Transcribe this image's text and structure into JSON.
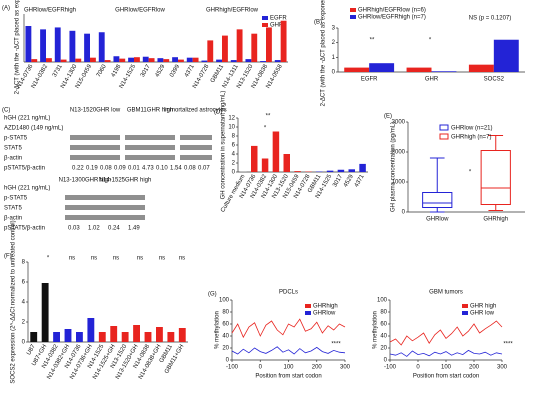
{
  "chart_data": [
    {
      "type": "bar",
      "panel": "(A)",
      "ylabel": "2-ΔCT (with the -ΔCT placed as exponent)",
      "annotations": [
        "GHRlow/EGFRhigh",
        "GHRlow/EGFRlow",
        "GHRhigh/EGFRlow"
      ],
      "categories": [
        "N14-0736",
        "N14-0382",
        "3731",
        "N14-1300",
        "N15-0459",
        "7060",
        "4198",
        "N14-1525",
        "3017",
        "4529",
        "0399",
        "4371",
        "N14-0728",
        "GBM11",
        "N14-1311",
        "N13-1520",
        "N14-0838",
        "N14-0558"
      ],
      "series": [
        {
          "name": "EGFR",
          "color": "#2323d6",
          "values": [
            7.5,
            6.8,
            7.2,
            6.5,
            5.9,
            6.2,
            1.2,
            0.9,
            1.1,
            0.8,
            1.0,
            0.9,
            0.3,
            0.5,
            0.4,
            0.6,
            0.2,
            0.4
          ]
        },
        {
          "name": "GHR",
          "color": "#e8241f",
          "values": [
            0.6,
            0.8,
            0.5,
            0.7,
            0.9,
            0.4,
            0.7,
            1.0,
            0.8,
            0.6,
            0.5,
            0.9,
            4.5,
            5.5,
            6.8,
            5.9,
            7.2,
            8.6
          ]
        }
      ],
      "ylim": [
        0,
        10
      ]
    },
    {
      "type": "bar",
      "panel": "(B)",
      "ylabel": "2-ΔCT (with the -ΔCT placed as exponent)",
      "annotations": [
        "**",
        "*",
        "NS (p = 0.1207)"
      ],
      "categories": [
        "EGFR",
        "GHR",
        "SOCS2"
      ],
      "series": [
        {
          "name": "GHRhigh/EGFRlow (n=6)",
          "color": "#e8241f",
          "values": [
            0.3,
            0.3,
            0.5
          ]
        },
        {
          "name": "GHRlow/EGFRhigh (n=7)",
          "color": "#2323d6",
          "values": [
            0.6,
            0.05,
            2.2
          ]
        }
      ],
      "ylim": [
        0,
        3
      ],
      "yticks": [
        0,
        1,
        2,
        3
      ]
    },
    {
      "type": "bar",
      "panel": "(D)",
      "ylabel": "GH concentration in supernatant (ng/mL)",
      "annotations": [
        "*",
        "**"
      ],
      "categories": [
        "Culture medium",
        "N14-0736",
        "N14-0382",
        "N14-1300",
        "N13-1520",
        "N15-0459",
        "N14-0728",
        "GBM11",
        "N14-1525",
        "3017",
        "4529",
        "4371"
      ],
      "values": [
        0.1,
        5.8,
        3.0,
        9.0,
        4.0,
        0.2,
        0.1,
        0.1,
        0.3,
        0.5,
        0.6,
        1.8
      ],
      "colors": [
        "#888888",
        "#e8241f",
        "#e8241f",
        "#e8241f",
        "#e8241f",
        "#e8241f",
        "#e8241f",
        "#2323d6",
        "#2323d6",
        "#2323d6",
        "#2323d6",
        "#2323d6"
      ],
      "ylim": [
        0,
        12
      ],
      "yticks": [
        0,
        2,
        4,
        6,
        8,
        10,
        12
      ]
    },
    {
      "type": "box",
      "panel": "(E)",
      "ylabel": "GH plasma concentration (pg/mL)",
      "annotations": [
        "*"
      ],
      "categories": [
        "GHRlow",
        "GHRhigh"
      ],
      "legend": [
        "GHRlow (n=21)",
        "GHRhigh (n=7)"
      ],
      "colors": [
        "#2323d6",
        "#e8241f"
      ],
      "min": [
        0,
        50
      ],
      "q1": [
        150,
        250
      ],
      "median": [
        300,
        800
      ],
      "q3": [
        650,
        2050
      ],
      "max": [
        1800,
        2550
      ],
      "ylim": [
        0,
        3000
      ],
      "yticks": [
        0,
        1000,
        2000,
        3000
      ]
    },
    {
      "type": "bar",
      "panel": "(F)",
      "ylabel": "SOCS2 expression (2^-ΔΔCt normalized to untreated control)",
      "annotations": [
        "*",
        "ns",
        "ns",
        "ns",
        "ns",
        "ns",
        "ns"
      ],
      "categories": [
        "U87",
        "U87+GH",
        "N14-0382",
        "N14-0382+GH",
        "N14-0736",
        "N14-0736+GH",
        "N14-1525",
        "N14-1525+GH",
        "N13-1520",
        "N13-1520+GH",
        "N14-0838",
        "N14-0838+GH",
        "GBM11",
        "GBM11+GH"
      ],
      "values": [
        1,
        5.9,
        1,
        1.3,
        1,
        2.4,
        1,
        1.6,
        1,
        1.7,
        1,
        1.5,
        1,
        1.4
      ],
      "colors": [
        "#111111",
        "#111111",
        "#2323d6",
        "#2323d6",
        "#2323d6",
        "#2323d6",
        "#e8241f",
        "#e8241f",
        "#e8241f",
        "#e8241f",
        "#e8241f",
        "#e8241f",
        "#e8241f",
        "#e8241f"
      ],
      "ylim": [
        0,
        8
      ],
      "yticks": [
        0,
        2,
        4,
        6,
        8
      ]
    },
    {
      "type": "line",
      "panel": "(G)",
      "title": "PDCLs",
      "ylabel": "% methylation",
      "xlabel": "Position from start codon",
      "annotations": [
        "****"
      ],
      "x": [
        -100,
        -80,
        -60,
        -40,
        -20,
        0,
        20,
        40,
        60,
        80,
        100,
        120,
        140,
        160,
        180,
        200,
        220,
        240,
        260,
        280,
        300
      ],
      "series": [
        {
          "name": "GHRhigh",
          "color": "#e8241f",
          "values": [
            45,
            60,
            38,
            55,
            62,
            40,
            58,
            65,
            50,
            42,
            60,
            55,
            68,
            48,
            52,
            63,
            45,
            57,
            50,
            60,
            55
          ]
        },
        {
          "name": "GHRlow",
          "color": "#2323d6",
          "values": [
            15,
            10,
            18,
            12,
            20,
            14,
            11,
            16,
            22,
            13,
            17,
            10,
            19,
            12,
            15,
            21,
            14,
            11,
            16,
            13,
            12
          ]
        }
      ],
      "xlim": [
        -100,
        300
      ],
      "xticks": [
        -100,
        0,
        100,
        200,
        300
      ],
      "ylim": [
        0,
        100
      ],
      "yticks": [
        0,
        20,
        40,
        60,
        80,
        100
      ]
    },
    {
      "type": "line",
      "title": "GBM tumors",
      "ylabel": "% methylation",
      "xlabel": "Position from start codon",
      "annotations": [
        "****"
      ],
      "x": [
        -100,
        -80,
        -60,
        -40,
        -20,
        0,
        20,
        40,
        60,
        80,
        100,
        120,
        140,
        160,
        180,
        200,
        220,
        240,
        260,
        280,
        300
      ],
      "series": [
        {
          "name": "GHR high",
          "color": "#e8241f",
          "values": [
            30,
            35,
            25,
            40,
            32,
            38,
            45,
            28,
            42,
            50,
            36,
            44,
            55,
            40,
            48,
            60,
            45,
            52,
            58,
            65,
            55
          ]
        },
        {
          "name": "GHR low",
          "color": "#2323d6",
          "values": [
            10,
            8,
            12,
            6,
            15,
            9,
            11,
            7,
            13,
            10,
            14,
            8,
            12,
            9,
            16,
            11,
            10,
            13,
            8,
            12,
            10
          ]
        }
      ],
      "xlim": [
        -100,
        300
      ],
      "xticks": [
        -100,
        0,
        100,
        200,
        300
      ],
      "ylim": [
        0,
        100
      ],
      "yticks": [
        0,
        20,
        40,
        60,
        80,
        100
      ]
    }
  ],
  "blot": {
    "panel": "(C)",
    "rows": [
      "hGH (221 ng/mL)",
      "AZD1480 (149 ng/mL)",
      "p-STAT5",
      "STAT5",
      "β-actin",
      "pSTAT5/β-actin"
    ],
    "headers": [
      "N13-1520GHR low",
      "GBM11GHR high",
      "Immortalized astrocytes"
    ],
    "ratios": [
      "0.22",
      "0.19",
      "0.08",
      "0.09",
      "0.01",
      "4.73",
      "0.10",
      "1.54",
      "0.08",
      "0.07"
    ],
    "rows2": [
      "hGH (221 ng/mL)",
      "p-STAT5",
      "STAT5",
      "β-actin",
      "pSTAT5/β-actin"
    ],
    "headers2": [
      "N13-1300GHR high",
      "N14-1525GHR high"
    ],
    "ratios2": [
      "0.03",
      "1.02",
      "0.24",
      "1.49"
    ]
  }
}
